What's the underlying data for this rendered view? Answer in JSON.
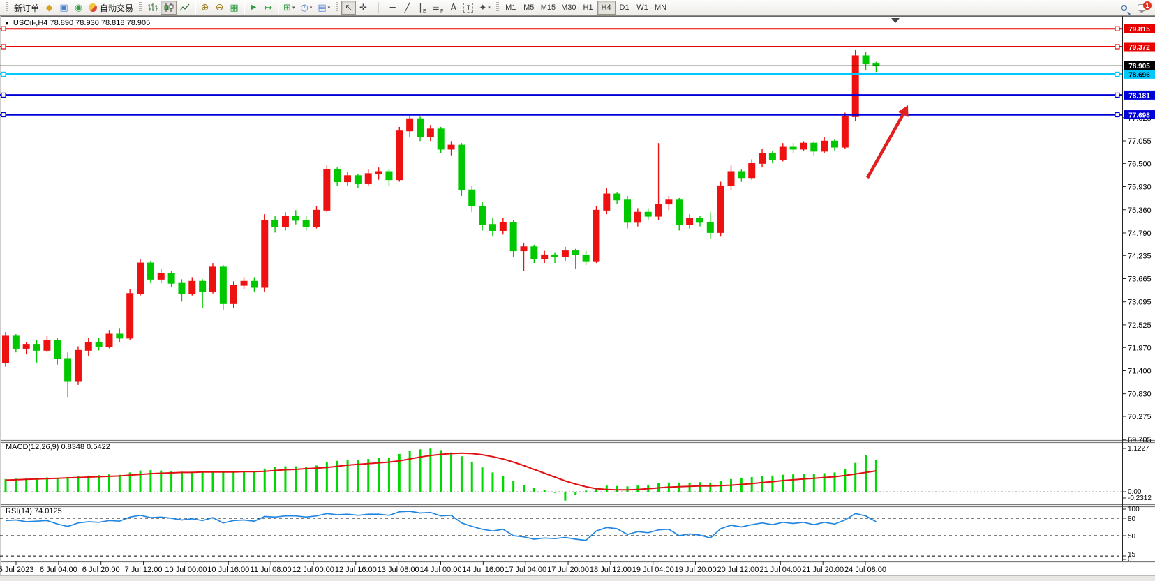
{
  "toolbar": {
    "new_order": "新订单",
    "autotrade": "自动交易",
    "timeframes": [
      "M1",
      "M5",
      "M15",
      "M30",
      "H1",
      "H4",
      "D1",
      "W1",
      "MN"
    ],
    "active_timeframe": "H4",
    "notification_badge": "1"
  },
  "chart": {
    "title": "USOil-,H4  78.890 78.930 78.818 78.905"
  },
  "chart_data": {
    "type": "candlestick",
    "symbol": "USOil-",
    "timeframe": "H4",
    "ohlc": {
      "open": 78.89,
      "high": 78.93,
      "low": 78.818,
      "close": 78.905
    },
    "current_price": "78.905",
    "colors": {
      "up": "#ee1111",
      "down": "#00c800",
      "macd_hist": "#00d900",
      "macd_signal": "#e01010",
      "rsi_line": "#2286e0",
      "current_price_line": "#000000",
      "arrow": "#e02020"
    },
    "price_ticks": [
      "77.625",
      "77.055",
      "76.500",
      "75.930",
      "75.360",
      "74.790",
      "74.235",
      "73.665",
      "73.095",
      "72.525",
      "71.970",
      "71.400",
      "70.830",
      "70.275",
      "69.705"
    ],
    "time_labels": [
      "5 Jul 2023",
      "6 Jul 04:00",
      "6 Jul 20:00",
      "7 Jul 12:00",
      "10 Jul 00:00",
      "10 Jul 16:00",
      "11 Jul 08:00",
      "12 Jul 00:00",
      "12 Jul 16:00",
      "13 Jul 08:00",
      "14 Jul 00:00",
      "14 Jul 16:00",
      "17 Jul 04:00",
      "17 Jul 20:00",
      "18 Jul 12:00",
      "19 Jul 04:00",
      "19 Jul 20:00",
      "20 Jul 12:00",
      "21 Jul 04:00",
      "21 Jul 20:00",
      "24 Jul 08:00"
    ],
    "lines": [
      {
        "price": "79.815",
        "value": 79.815,
        "color": "#e80000",
        "text_color": "#ffffff",
        "width": 2
      },
      {
        "price": "79.372",
        "value": 79.372,
        "color": "#e80000",
        "text_color": "#ffffff",
        "width": 2
      },
      {
        "price": "78.696",
        "value": 78.696,
        "color": "#00c8ff",
        "text_color": "#000000",
        "width": 3
      },
      {
        "price": "78.181",
        "value": 78.181,
        "color": "#0000d8",
        "text_color": "#ffffff",
        "width": 2.5
      },
      {
        "price": "77.698",
        "value": 77.698,
        "color": "#0000d8",
        "text_color": "#ffffff",
        "width": 2.5
      }
    ],
    "candles": [
      [
        71.6,
        72.35,
        71.5,
        72.25
      ],
      [
        72.25,
        72.3,
        71.85,
        71.95
      ],
      [
        71.95,
        72.1,
        71.8,
        72.05
      ],
      [
        72.05,
        72.15,
        71.6,
        71.9
      ],
      [
        71.9,
        72.25,
        71.85,
        72.15
      ],
      [
        72.15,
        72.2,
        71.55,
        71.7
      ],
      [
        71.7,
        71.85,
        70.75,
        71.15
      ],
      [
        71.15,
        72.0,
        71.05,
        71.9
      ],
      [
        71.9,
        72.2,
        71.75,
        72.1
      ],
      [
        72.1,
        72.2,
        71.9,
        72.0
      ],
      [
        72.0,
        72.4,
        71.95,
        72.3
      ],
      [
        72.3,
        72.45,
        72.1,
        72.2
      ],
      [
        72.2,
        73.4,
        72.15,
        73.3
      ],
      [
        73.3,
        74.15,
        73.25,
        74.05
      ],
      [
        74.05,
        74.1,
        73.55,
        73.65
      ],
      [
        73.65,
        73.9,
        73.55,
        73.8
      ],
      [
        73.8,
        73.85,
        73.45,
        73.55
      ],
      [
        73.55,
        73.65,
        73.1,
        73.3
      ],
      [
        73.3,
        73.7,
        73.25,
        73.6
      ],
      [
        73.6,
        73.65,
        72.95,
        73.35
      ],
      [
        73.35,
        74.05,
        73.3,
        73.95
      ],
      [
        73.95,
        74.0,
        72.9,
        73.05
      ],
      [
        73.05,
        73.6,
        72.95,
        73.5
      ],
      [
        73.5,
        73.7,
        73.4,
        73.6
      ],
      [
        73.6,
        73.7,
        73.35,
        73.45
      ],
      [
        73.45,
        75.25,
        73.35,
        75.1
      ],
      [
        75.1,
        75.2,
        74.8,
        74.95
      ],
      [
        74.95,
        75.3,
        74.85,
        75.2
      ],
      [
        75.2,
        75.35,
        75.0,
        75.1
      ],
      [
        75.1,
        75.2,
        74.85,
        74.95
      ],
      [
        74.95,
        75.45,
        74.9,
        75.35
      ],
      [
        75.35,
        76.45,
        75.3,
        76.35
      ],
      [
        76.35,
        76.4,
        75.95,
        76.05
      ],
      [
        76.05,
        76.3,
        75.95,
        76.2
      ],
      [
        76.2,
        76.25,
        75.9,
        76.0
      ],
      [
        76.0,
        76.35,
        75.95,
        76.25
      ],
      [
        76.25,
        76.4,
        76.1,
        76.3
      ],
      [
        76.3,
        76.35,
        75.95,
        76.1
      ],
      [
        76.1,
        77.4,
        76.05,
        77.3
      ],
      [
        77.3,
        77.7,
        77.15,
        77.6
      ],
      [
        77.6,
        77.65,
        77.05,
        77.15
      ],
      [
        77.15,
        77.45,
        77.05,
        77.35
      ],
      [
        77.35,
        77.4,
        76.75,
        76.85
      ],
      [
        76.85,
        77.05,
        76.7,
        76.95
      ],
      [
        76.95,
        77.0,
        75.7,
        75.85
      ],
      [
        75.85,
        75.95,
        75.3,
        75.45
      ],
      [
        75.45,
        75.55,
        74.85,
        75.0
      ],
      [
        75.0,
        75.15,
        74.7,
        74.85
      ],
      [
        74.85,
        75.15,
        74.75,
        75.05
      ],
      [
        75.05,
        75.1,
        74.2,
        74.35
      ],
      [
        74.35,
        74.55,
        73.85,
        74.45
      ],
      [
        74.45,
        74.5,
        74.05,
        74.15
      ],
      [
        74.15,
        74.35,
        74.05,
        74.25
      ],
      [
        74.25,
        74.3,
        74.05,
        74.2
      ],
      [
        74.2,
        74.45,
        74.1,
        74.35
      ],
      [
        74.35,
        74.4,
        73.9,
        74.25
      ],
      [
        74.25,
        74.35,
        74.0,
        74.1
      ],
      [
        74.1,
        75.45,
        74.05,
        75.35
      ],
      [
        75.35,
        75.9,
        75.25,
        75.75
      ],
      [
        75.75,
        75.8,
        75.5,
        75.6
      ],
      [
        75.6,
        75.7,
        74.9,
        75.05
      ],
      [
        75.05,
        75.4,
        74.95,
        75.3
      ],
      [
        75.3,
        75.4,
        75.1,
        75.2
      ],
      [
        75.2,
        77.0,
        75.1,
        75.5
      ],
      [
        75.5,
        75.7,
        75.35,
        75.6
      ],
      [
        75.6,
        75.65,
        74.85,
        75.0
      ],
      [
        75.0,
        75.25,
        74.9,
        75.15
      ],
      [
        75.15,
        75.2,
        74.95,
        75.05
      ],
      [
        75.05,
        75.3,
        74.65,
        74.8
      ],
      [
        74.8,
        76.05,
        74.7,
        75.95
      ],
      [
        75.95,
        76.45,
        75.85,
        76.3
      ],
      [
        76.3,
        76.35,
        76.05,
        76.15
      ],
      [
        76.15,
        76.6,
        76.1,
        76.5
      ],
      [
        76.5,
        76.85,
        76.4,
        76.75
      ],
      [
        76.75,
        76.8,
        76.5,
        76.6
      ],
      [
        76.6,
        77.0,
        76.55,
        76.9
      ],
      [
        76.9,
        77.0,
        76.75,
        76.85
      ],
      [
        76.85,
        77.05,
        76.8,
        77.0
      ],
      [
        77.0,
        77.05,
        76.7,
        76.8
      ],
      [
        76.8,
        77.15,
        76.75,
        77.05
      ],
      [
        77.05,
        77.1,
        76.8,
        76.9
      ],
      [
        76.9,
        77.75,
        76.85,
        77.65
      ],
      [
        77.65,
        79.3,
        77.55,
        79.15
      ],
      [
        79.15,
        79.25,
        78.8,
        78.95
      ],
      [
        78.95,
        79.0,
        78.75,
        78.905
      ]
    ],
    "macd": {
      "label": "MACD(12,26,9) 0.8348 0.5422",
      "params": "12,26,9",
      "main_value": 0.8348,
      "signal_value": 0.5422,
      "axis": [
        "1.1227",
        "0.00",
        "-0.2312"
      ],
      "histogram": [
        0.33,
        0.34,
        0.36,
        0.35,
        0.37,
        0.36,
        0.38,
        0.4,
        0.42,
        0.43,
        0.45,
        0.44,
        0.5,
        0.55,
        0.56,
        0.55,
        0.54,
        0.52,
        0.52,
        0.5,
        0.53,
        0.5,
        0.5,
        0.52,
        0.52,
        0.6,
        0.64,
        0.66,
        0.66,
        0.65,
        0.68,
        0.76,
        0.8,
        0.82,
        0.83,
        0.85,
        0.87,
        0.87,
        0.98,
        1.06,
        1.1,
        1.12,
        1.08,
        1.02,
        0.92,
        0.78,
        0.63,
        0.5,
        0.4,
        0.28,
        0.18,
        0.1,
        0.04,
        -0.03,
        -0.23,
        -0.08,
        0.03,
        0.1,
        0.16,
        0.15,
        0.14,
        0.16,
        0.18,
        0.22,
        0.24,
        0.22,
        0.24,
        0.25,
        0.24,
        0.28,
        0.33,
        0.36,
        0.38,
        0.41,
        0.42,
        0.44,
        0.45,
        0.46,
        0.46,
        0.48,
        0.5,
        0.58,
        0.75,
        0.95,
        0.835
      ],
      "signal": [
        0.3,
        0.31,
        0.32,
        0.33,
        0.34,
        0.35,
        0.36,
        0.37,
        0.38,
        0.39,
        0.4,
        0.41,
        0.43,
        0.45,
        0.47,
        0.48,
        0.49,
        0.5,
        0.5,
        0.51,
        0.51,
        0.51,
        0.51,
        0.52,
        0.52,
        0.53,
        0.55,
        0.57,
        0.58,
        0.6,
        0.61,
        0.63,
        0.66,
        0.69,
        0.71,
        0.73,
        0.75,
        0.77,
        0.8,
        0.85,
        0.9,
        0.94,
        0.97,
        0.99,
        1.0,
        0.99,
        0.96,
        0.91,
        0.85,
        0.77,
        0.68,
        0.58,
        0.48,
        0.38,
        0.28,
        0.2,
        0.13,
        0.08,
        0.06,
        0.05,
        0.05,
        0.06,
        0.08,
        0.1,
        0.12,
        0.13,
        0.14,
        0.15,
        0.15,
        0.16,
        0.17,
        0.19,
        0.21,
        0.24,
        0.26,
        0.29,
        0.31,
        0.33,
        0.35,
        0.37,
        0.39,
        0.42,
        0.46,
        0.5,
        0.5422
      ]
    },
    "rsi": {
      "label": "RSI(14) 74.0125",
      "period": 14,
      "value": 74.0125,
      "axis": [
        "100",
        "80",
        "50",
        "15",
        "0"
      ],
      "dashed_levels": [
        80,
        50,
        15
      ],
      "series": [
        76,
        77,
        74,
        75,
        76,
        70,
        66,
        72,
        74,
        73,
        76,
        75,
        82,
        85,
        81,
        82,
        80,
        77,
        79,
        76,
        81,
        72,
        76,
        77,
        75,
        83,
        82,
        84,
        84,
        82,
        84,
        88,
        86,
        87,
        85,
        87,
        87,
        85,
        91,
        92,
        89,
        90,
        84,
        85,
        72,
        66,
        61,
        58,
        61,
        50,
        48,
        44,
        46,
        45,
        47,
        44,
        42,
        58,
        64,
        62,
        52,
        57,
        55,
        60,
        61,
        50,
        53,
        51,
        46,
        62,
        68,
        65,
        69,
        72,
        69,
        73,
        71,
        73,
        69,
        73,
        70,
        77,
        88,
        84,
        74
      ]
    },
    "annotations": {
      "arrow": {
        "shape": "up-right-arrow",
        "color": "#e02020"
      }
    }
  }
}
